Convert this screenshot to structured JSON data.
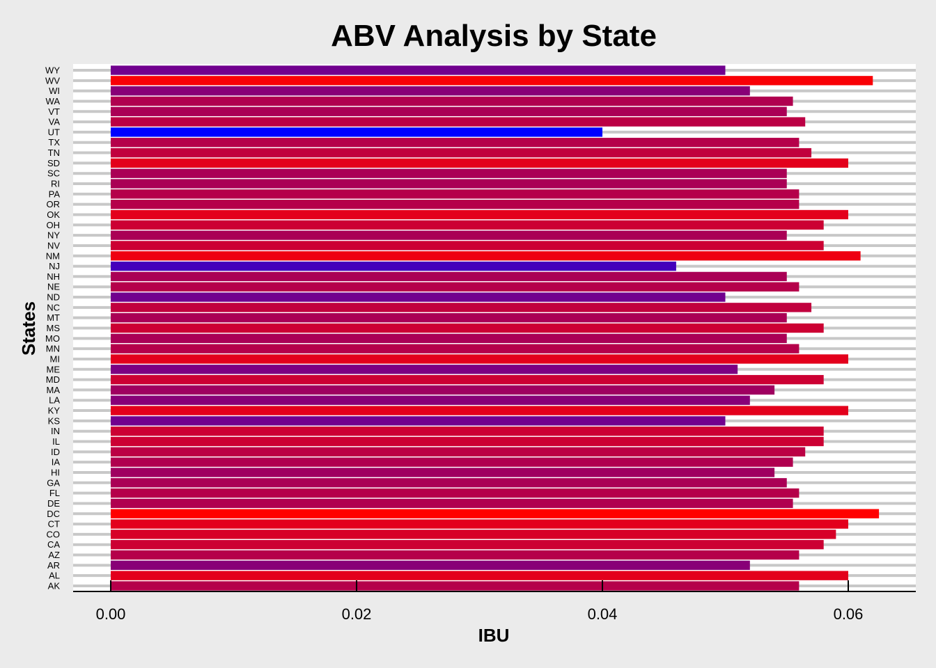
{
  "chart_data": {
    "type": "bar",
    "orientation": "horizontal",
    "title": "ABV Analysis by State",
    "xlabel": "IBU",
    "ylabel": "States",
    "xlim": [
      0,
      0.0655
    ],
    "xticks": [
      0.0,
      0.02,
      0.04,
      0.06
    ],
    "xtick_labels": [
      "0.00",
      "0.02",
      "0.04",
      "0.06"
    ],
    "grid": true,
    "legend": "none",
    "color_scale": {
      "low": "#0000ff",
      "high": "#ff0000",
      "domain": [
        0.04,
        0.0625
      ]
    },
    "categories": [
      "AK",
      "AL",
      "AR",
      "AZ",
      "CA",
      "CO",
      "CT",
      "DC",
      "DE",
      "FL",
      "GA",
      "HI",
      "IA",
      "ID",
      "IL",
      "IN",
      "KS",
      "KY",
      "LA",
      "MA",
      "MD",
      "ME",
      "MI",
      "MN",
      "MO",
      "MS",
      "MT",
      "NC",
      "ND",
      "NE",
      "NH",
      "NJ",
      "NM",
      "NV",
      "NY",
      "OH",
      "OK",
      "OR",
      "PA",
      "RI",
      "SC",
      "SD",
      "TN",
      "TX",
      "UT",
      "VA",
      "VT",
      "WA",
      "WI",
      "WV",
      "WY"
    ],
    "values": [
      0.056,
      0.06,
      0.052,
      0.056,
      0.058,
      0.059,
      0.06,
      0.0625,
      0.0555,
      0.056,
      0.055,
      0.054,
      0.0555,
      0.0565,
      0.058,
      0.058,
      0.05,
      0.06,
      0.052,
      0.054,
      0.058,
      0.051,
      0.06,
      0.056,
      0.055,
      0.058,
      0.055,
      0.057,
      0.05,
      0.056,
      0.055,
      0.046,
      0.061,
      0.058,
      0.055,
      0.058,
      0.06,
      0.056,
      0.056,
      0.055,
      0.055,
      0.06,
      0.057,
      0.056,
      0.04,
      0.0565,
      0.055,
      0.0555,
      0.052,
      0.062,
      0.05
    ]
  }
}
